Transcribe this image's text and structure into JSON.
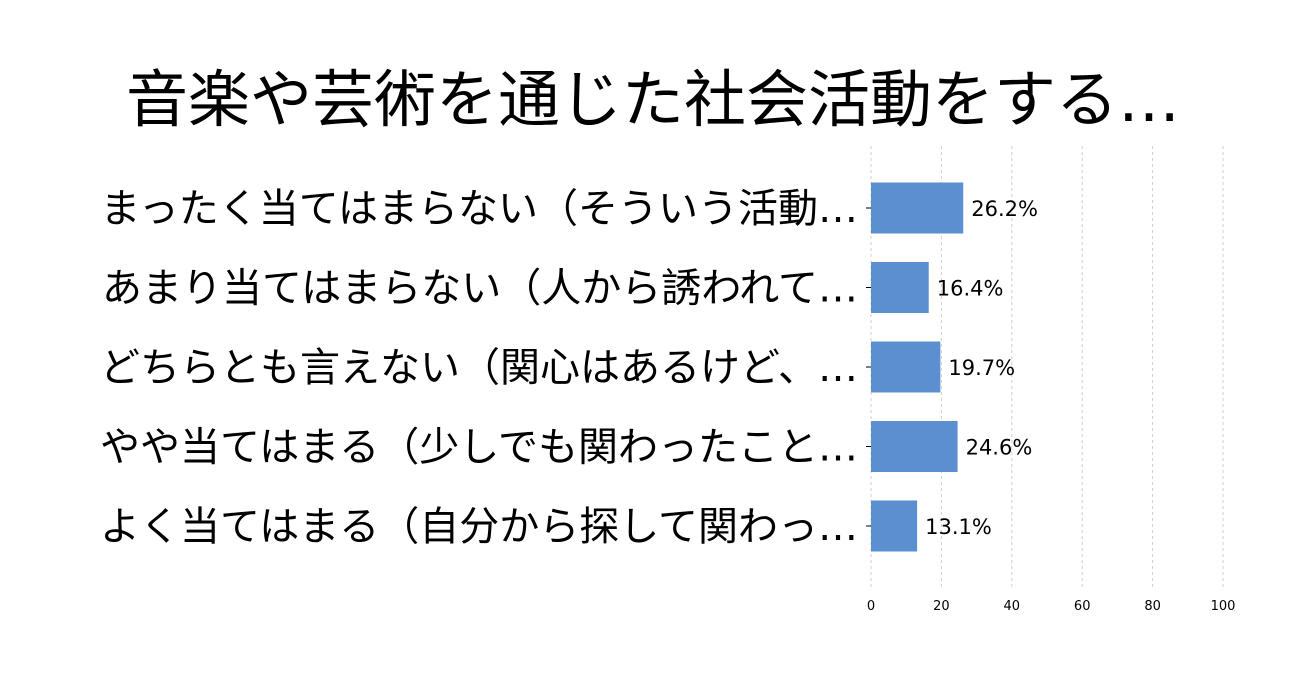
{
  "chart_data": {
    "type": "bar",
    "orientation": "horizontal",
    "title": "音楽や芸術を通じた社会活動をする…",
    "xlabel": "",
    "ylabel": "",
    "categories": [
      "まったく当てはまらない（そういう活動…",
      "あまり当てはまらない（人から誘われて…",
      "どちらとも言えない（関心はあるけど、…",
      "やや当てはまる（少しでも関わったこと…",
      "よく当てはまる（自分から探して関わっ…"
    ],
    "values": [
      26.2,
      16.4,
      19.7,
      24.6,
      13.1
    ],
    "value_labels": [
      "26.2%",
      "16.4%",
      "19.7%",
      "24.6%",
      "13.1%"
    ],
    "xlim": [
      0,
      100
    ],
    "xticks": [
      "0",
      "20",
      "40",
      "60",
      "80",
      "100"
    ],
    "grid": true,
    "bar_color": "#5b8fd0"
  }
}
